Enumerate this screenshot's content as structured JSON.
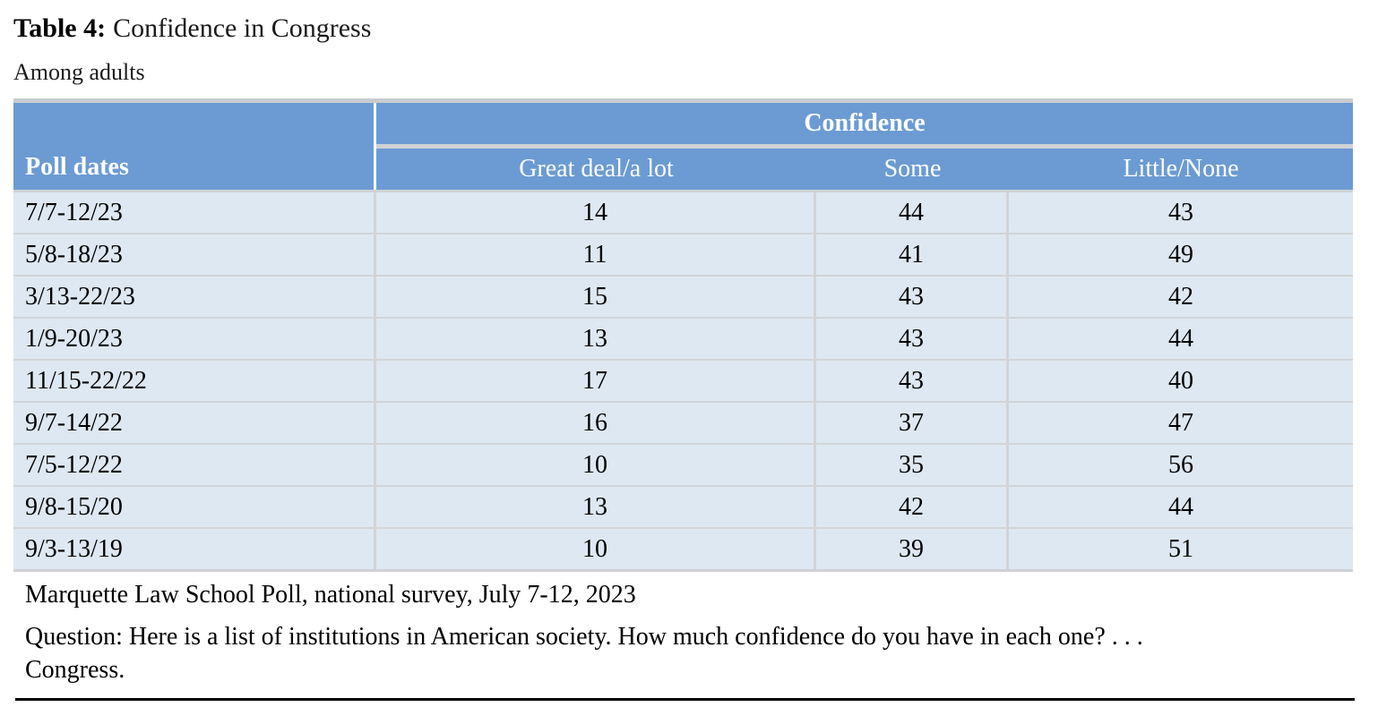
{
  "title": {
    "label": "Table 4:",
    "text": "Confidence in Congress"
  },
  "subtitle": "Among adults",
  "table": {
    "row_header": "Poll dates",
    "group_header": "Confidence",
    "columns": [
      "Great deal/a lot",
      "Some",
      "Little/None"
    ],
    "rows": [
      {
        "dates": "7/7-12/23",
        "values": [
          14,
          44,
          43
        ]
      },
      {
        "dates": "5/8-18/23",
        "values": [
          11,
          41,
          49
        ]
      },
      {
        "dates": "3/13-22/23",
        "values": [
          15,
          43,
          42
        ]
      },
      {
        "dates": "1/9-20/23",
        "values": [
          13,
          43,
          44
        ]
      },
      {
        "dates": "11/15-22/22",
        "values": [
          17,
          43,
          40
        ]
      },
      {
        "dates": "9/7-14/22",
        "values": [
          16,
          37,
          47
        ]
      },
      {
        "dates": "7/5-12/22",
        "values": [
          10,
          35,
          56
        ]
      },
      {
        "dates": "9/8-15/20",
        "values": [
          13,
          42,
          44
        ]
      },
      {
        "dates": "9/3-13/19",
        "values": [
          10,
          39,
          51
        ]
      }
    ]
  },
  "footer": {
    "source": "Marquette Law School Poll, national survey, July 7-12, 2023",
    "question_lines": [
      "Question: Here is a list of institutions in American society. How much confidence do you have in each one? . . .",
      "Congress."
    ]
  },
  "colors": {
    "header_blue": "#6b9bd2",
    "row_light_blue": "#dee8f2",
    "divider_gray": "#cfd2d5",
    "header_text": "#ffffff"
  }
}
